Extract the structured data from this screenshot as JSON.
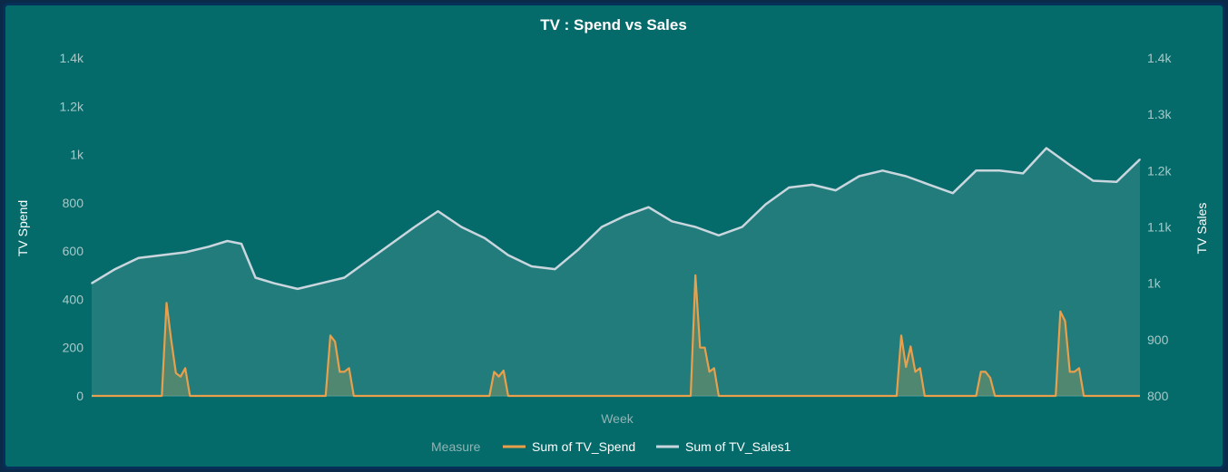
{
  "chart_data": {
    "type": "area",
    "title": "TV : Spend vs Sales",
    "xlabel": "Week",
    "ylabel_left": "TV Spend",
    "ylabel_right": "TV Sales",
    "ylim_left": [
      0,
      1400
    ],
    "ylim_right": [
      800,
      1400
    ],
    "left_ticks": [
      {
        "value": 0,
        "label": "0"
      },
      {
        "value": 200,
        "label": "200"
      },
      {
        "value": 400,
        "label": "400"
      },
      {
        "value": 600,
        "label": "600"
      },
      {
        "value": 800,
        "label": "800"
      },
      {
        "value": 1000,
        "label": "1k"
      },
      {
        "value": 1200,
        "label": "1.2k"
      },
      {
        "value": 1400,
        "label": "1.4k"
      }
    ],
    "right_ticks": [
      {
        "value": 800,
        "label": "800"
      },
      {
        "value": 900,
        "label": "900"
      },
      {
        "value": 1000,
        "label": "1k"
      },
      {
        "value": 1100,
        "label": "1.1k"
      },
      {
        "value": 1200,
        "label": "1.2k"
      },
      {
        "value": 1300,
        "label": "1.3k"
      },
      {
        "value": 1400,
        "label": "1.4k"
      }
    ],
    "grid": false,
    "legend_position": "bottom",
    "legend_title": "Measure",
    "x": [
      1,
      6,
      11,
      16,
      21,
      26,
      30,
      33,
      36,
      40,
      45,
      50,
      55,
      60,
      65,
      70,
      75,
      80,
      85,
      90,
      95,
      100,
      105,
      110,
      115,
      120,
      125,
      130,
      135,
      140,
      145,
      150,
      155,
      160,
      165,
      170,
      175,
      180,
      185,
      190,
      195,
      200,
      205,
      210,
      215,
      220,
      225
    ],
    "series": [
      {
        "name": "Sum of TV_Spend",
        "axis": "left",
        "color": "#e8a04c",
        "values": [
          0,
          0,
          0,
          0,
          0,
          0,
          0,
          0,
          0,
          0,
          0,
          0,
          0,
          0,
          0,
          0,
          0,
          0,
          0,
          0,
          0,
          0,
          0,
          0,
          0,
          0,
          0,
          0,
          0,
          0,
          0,
          0,
          0,
          0,
          0,
          0,
          0,
          0,
          0,
          0,
          0,
          0,
          0,
          0,
          0,
          0,
          0
        ],
        "spikes": [
          {
            "x": 17,
            "values": [
              385,
              230,
              95,
              80,
              115,
              0
            ]
          },
          {
            "x": 52,
            "values": [
              250,
              225,
              100,
              100,
              115,
              0
            ]
          },
          {
            "x": 87,
            "values": [
              100,
              80,
              105,
              0
            ]
          },
          {
            "x": 130,
            "values": [
              500,
              200,
              200,
              100,
              115,
              0
            ]
          },
          {
            "x": 174,
            "values": [
              250,
              120,
              205,
              100,
              115,
              0
            ]
          },
          {
            "x": 191,
            "values": [
              100,
              100,
              75,
              0
            ]
          },
          {
            "x": 208,
            "values": [
              350,
              310,
              100,
              100,
              115,
              0
            ]
          }
        ]
      },
      {
        "name": "Sum of TV_Sales1",
        "axis": "right",
        "color": "#c9d6de",
        "values": [
          1000,
          1025,
          1045,
          1050,
          1055,
          1065,
          1075,
          1070,
          1010,
          1000,
          990,
          1000,
          1010,
          1040,
          1070,
          1100,
          1128,
          1100,
          1080,
          1050,
          1030,
          1025,
          1060,
          1100,
          1120,
          1135,
          1110,
          1100,
          1085,
          1100,
          1140,
          1170,
          1175,
          1165,
          1190,
          1200,
          1190,
          1175,
          1160,
          1200,
          1200,
          1195,
          1240,
          1210,
          1182,
          1180,
          1220
        ]
      }
    ]
  }
}
